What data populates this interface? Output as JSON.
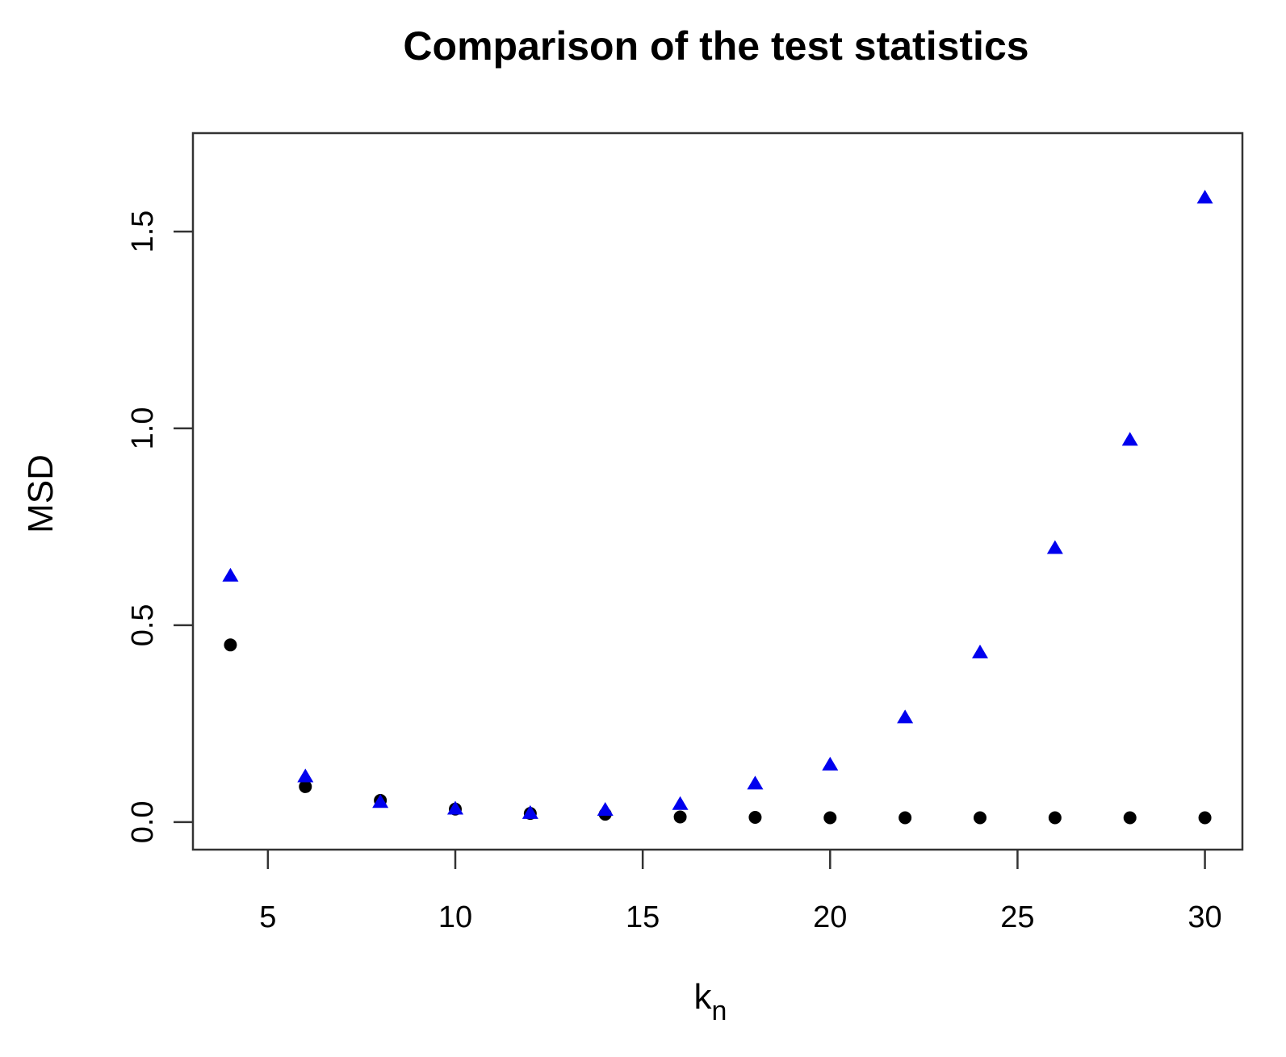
{
  "chart_data": {
    "type": "scatter",
    "title": "Comparison of the test statistics",
    "xlabel": "k",
    "xlabel_subscript": "n",
    "ylabel": "MSD",
    "xlim": [
      3,
      31
    ],
    "ylim": [
      -0.07,
      1.75
    ],
    "xticks": [
      5,
      10,
      15,
      20,
      25,
      30
    ],
    "yticks": [
      0.0,
      0.5,
      1.0,
      1.5
    ],
    "ytick_labels": [
      "0.0",
      "0.5",
      "1.0",
      "1.5"
    ],
    "grid": false,
    "legend": null,
    "x": [
      4,
      6,
      8,
      10,
      12,
      14,
      16,
      18,
      20,
      22,
      24,
      26,
      28,
      30
    ],
    "series": [
      {
        "marker": "circle",
        "color": "#000000",
        "values": [
          0.45,
          0.09,
          0.055,
          0.033,
          0.022,
          0.02,
          0.013,
          0.012,
          0.011,
          0.011,
          0.011,
          0.011,
          0.011,
          0.011
        ]
      },
      {
        "marker": "triangle",
        "color": "#0000ee",
        "values": [
          0.625,
          0.115,
          0.05,
          0.033,
          0.022,
          0.03,
          0.045,
          0.097,
          0.145,
          0.265,
          0.43,
          0.695,
          0.97,
          1.585
        ]
      }
    ]
  }
}
